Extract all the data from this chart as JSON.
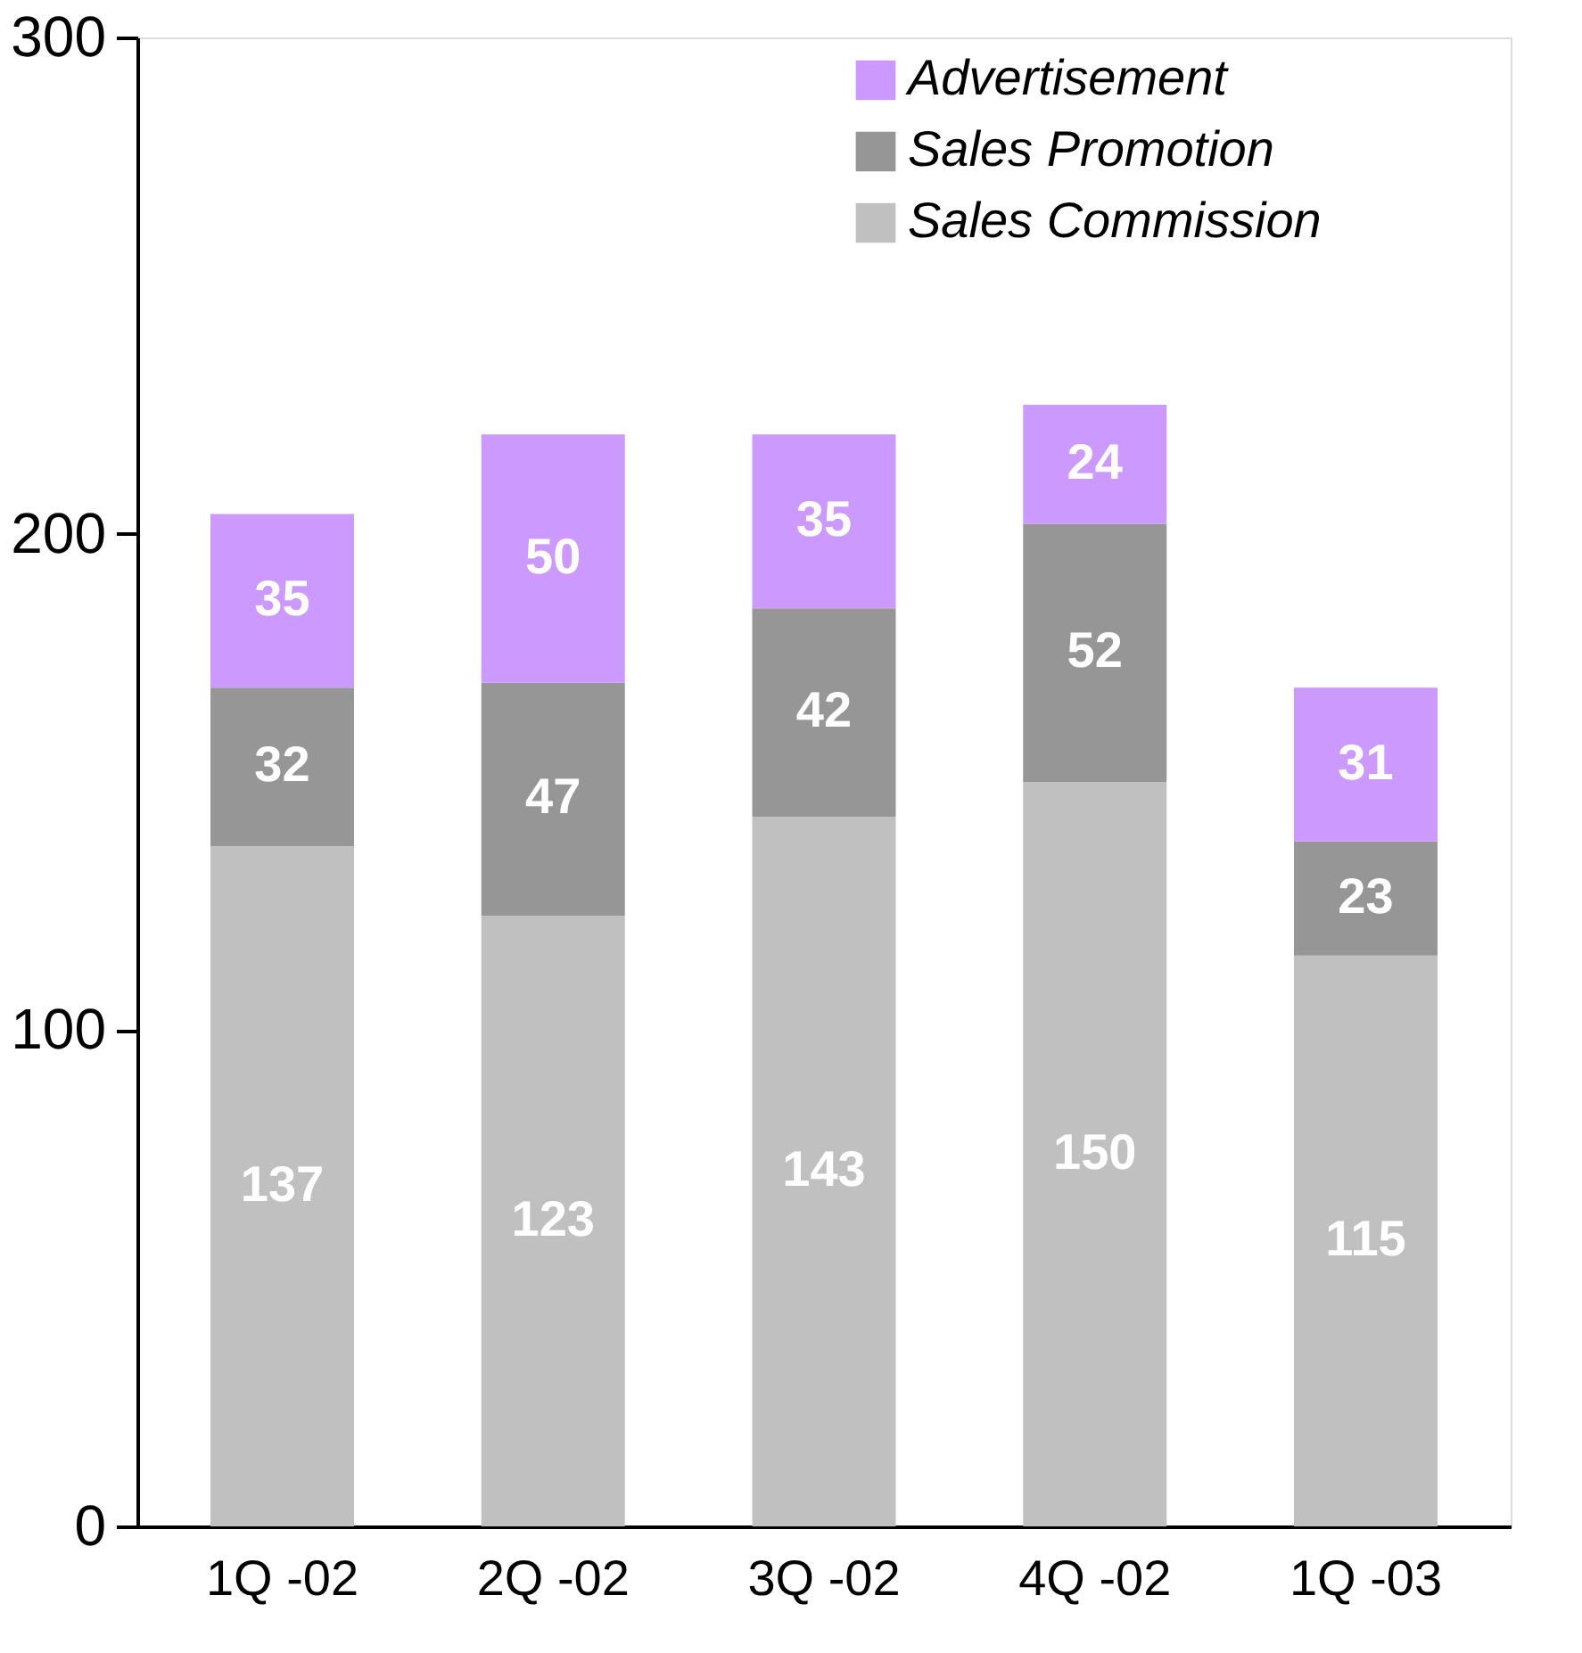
{
  "chart_data": {
    "type": "bar",
    "stacked": true,
    "data_labels": true,
    "legend": "top right",
    "grid": false,
    "categories": [
      "1Q -02",
      "2Q -02",
      "3Q -02",
      "4Q -02",
      "1Q -03"
    ],
    "series": [
      {
        "name": "Sales Commission",
        "color": "#c0c0c0",
        "values": [
          137,
          123,
          143,
          150,
          115
        ]
      },
      {
        "name": "Sales Promotion",
        "color": "#969696",
        "values": [
          32,
          47,
          42,
          52,
          23
        ]
      },
      {
        "name": "Advertisement",
        "color": "#cc99ff",
        "values": [
          35,
          50,
          35,
          24,
          31
        ]
      }
    ],
    "ylim": [
      0,
      300
    ],
    "yticks": [
      0,
      100,
      200,
      300
    ]
  }
}
